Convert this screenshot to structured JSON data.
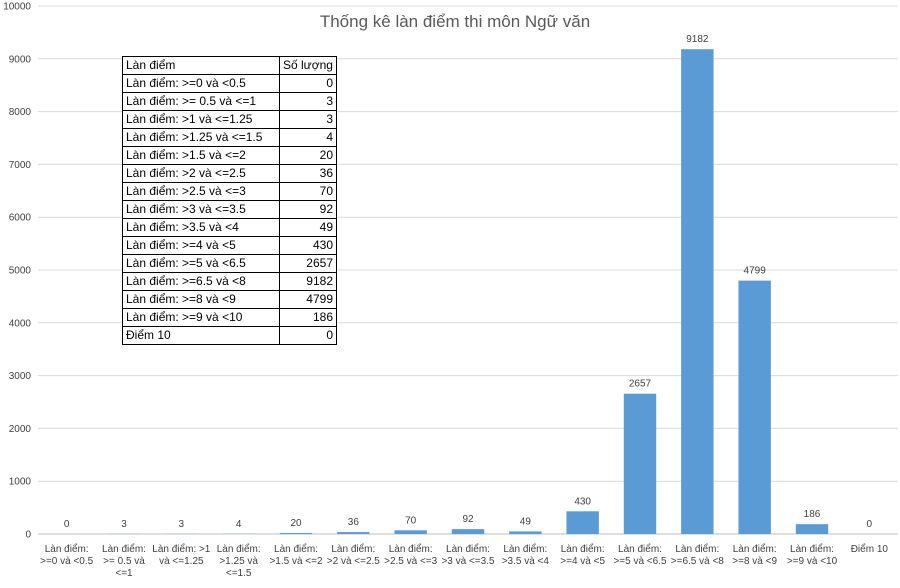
{
  "chart_data": {
    "type": "bar",
    "title": "Thống kê làn điểm thi môn Ngữ văn",
    "xlabel": "",
    "ylabel": "",
    "ylim": [
      0,
      10000
    ],
    "yticks": [
      0,
      1000,
      2000,
      3000,
      4000,
      5000,
      6000,
      7000,
      8000,
      9000,
      10000
    ],
    "grid": true,
    "legend": "none",
    "bar_color": "#5b9bd5",
    "categories": [
      [
        "Làn điểm:",
        ">=0 và <0.5"
      ],
      [
        "Làn điểm:",
        ">= 0.5 và",
        "<=1"
      ],
      [
        "Làn điểm: >1",
        "và <=1.25"
      ],
      [
        "Làn điểm:",
        ">1.25 và",
        "<=1.5"
      ],
      [
        "Làn điểm:",
        ">1.5 và <=2"
      ],
      [
        "Làn điểm:",
        ">2 và <=2.5"
      ],
      [
        "Làn điểm:",
        ">2.5 và <=3"
      ],
      [
        "Làn điểm:",
        ">3 và <=3.5"
      ],
      [
        "Làn điểm:",
        ">3.5 và <4"
      ],
      [
        "Làn điểm:",
        ">=4 và <5"
      ],
      [
        "Làn điểm:",
        ">=5 và <6.5"
      ],
      [
        "Làn điểm:",
        ">=6.5 và <8"
      ],
      [
        "Làn điểm:",
        ">=8 và <9"
      ],
      [
        "Làn điểm:",
        ">=9 và <10"
      ],
      [
        "Điểm 10"
      ]
    ],
    "values": [
      0,
      3,
      3,
      4,
      20,
      36,
      70,
      92,
      49,
      430,
      2657,
      9182,
      4799,
      186,
      0
    ]
  },
  "table": {
    "header": [
      "Làn điểm",
      "Số lượng"
    ],
    "rows": [
      [
        "Làn điểm: >=0 và <0.5",
        "0"
      ],
      [
        "Làn điểm: >= 0.5 và <=1",
        "3"
      ],
      [
        "Làn điểm: >1 và <=1.25",
        "3"
      ],
      [
        "Làn điểm: >1.25 và <=1.5",
        "4"
      ],
      [
        "Làn điểm: >1.5 và <=2",
        "20"
      ],
      [
        "Làn điểm: >2 và <=2.5",
        "36"
      ],
      [
        "Làn điểm: >2.5 và <=3",
        "70"
      ],
      [
        "Làn điểm: >3 và <=3.5",
        "92"
      ],
      [
        "Làn điểm: >3.5 và <4",
        "49"
      ],
      [
        "Làn điểm: >=4 và <5",
        "430"
      ],
      [
        "Làn điểm: >=5 và <6.5",
        "2657"
      ],
      [
        "Làn điểm: >=6.5 và <8",
        "9182"
      ],
      [
        "Làn điểm: >=8 và <9",
        "4799"
      ],
      [
        "Làn điểm: >=9 và <10",
        "186"
      ],
      [
        "Điểm 10",
        "0"
      ]
    ]
  }
}
